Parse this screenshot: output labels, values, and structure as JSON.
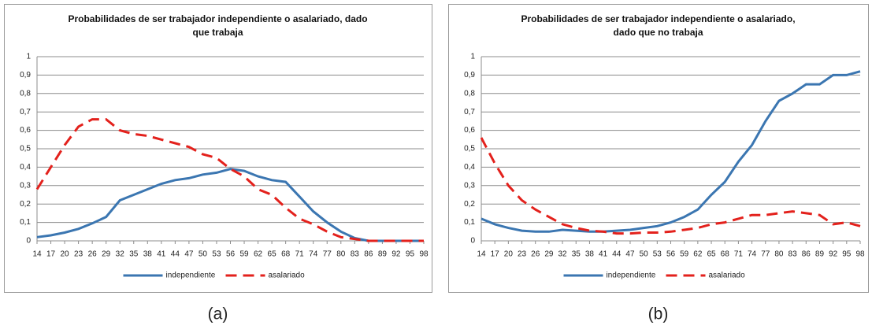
{
  "chart_data": [
    {
      "type": "line",
      "title": "Probabilidades de ser trabajador independiente o asalariado, dado que trabaja",
      "caption": "(a)",
      "x": [
        14,
        17,
        20,
        23,
        26,
        29,
        32,
        35,
        38,
        41,
        44,
        47,
        50,
        53,
        56,
        59,
        62,
        65,
        68,
        71,
        74,
        77,
        80,
        83,
        86,
        89,
        92,
        95,
        98
      ],
      "xlim": [
        14,
        98
      ],
      "xticks": [
        14,
        17,
        20,
        23,
        26,
        29,
        32,
        35,
        38,
        41,
        44,
        47,
        50,
        53,
        56,
        59,
        62,
        65,
        68,
        71,
        74,
        77,
        80,
        83,
        86,
        89,
        92,
        95,
        98
      ],
      "ylim": [
        0,
        1
      ],
      "yticks": [
        0,
        {
          "value": 0.1,
          "label": "0,1"
        },
        {
          "value": 0.2,
          "label": "0,2"
        },
        {
          "value": 0.3,
          "label": "0,3"
        },
        {
          "value": 0.4,
          "label": "0,4"
        },
        {
          "value": 0.5,
          "label": "0,5"
        },
        {
          "value": 0.6,
          "label": "0,6"
        },
        {
          "value": 0.7,
          "label": "0,7"
        },
        {
          "value": 0.8,
          "label": "0,8"
        },
        {
          "value": 0.9,
          "label": "0,9"
        },
        1
      ],
      "grid": true,
      "legend": "bottom",
      "series": [
        {
          "name": "independiente",
          "color": "#3b76b1",
          "style": "solid",
          "values": [
            0.02,
            0.03,
            0.045,
            0.065,
            0.095,
            0.13,
            0.22,
            0.25,
            0.28,
            0.31,
            0.33,
            0.34,
            0.36,
            0.37,
            0.39,
            0.38,
            0.35,
            0.33,
            0.32,
            0.24,
            0.16,
            0.1,
            0.05,
            0.015,
            0,
            0,
            0,
            0,
            0
          ]
        },
        {
          "name": "asalariado",
          "color": "#e3211c",
          "style": "dashed",
          "values": [
            0.28,
            0.4,
            0.52,
            0.62,
            0.66,
            0.66,
            0.6,
            0.58,
            0.57,
            0.55,
            0.53,
            0.51,
            0.47,
            0.45,
            0.39,
            0.35,
            0.28,
            0.25,
            0.18,
            0.12,
            0.09,
            0.05,
            0.02,
            0.01,
            0,
            0,
            0,
            0,
            0
          ]
        }
      ]
    },
    {
      "type": "line",
      "title": "Probabilidades de ser trabajador independiente o asalariado, dado que no trabaja",
      "caption": "(b)",
      "x": [
        14,
        17,
        20,
        23,
        26,
        29,
        32,
        35,
        38,
        41,
        44,
        47,
        50,
        53,
        56,
        59,
        62,
        65,
        68,
        71,
        74,
        77,
        80,
        83,
        86,
        89,
        92,
        95,
        98
      ],
      "xlim": [
        14,
        98
      ],
      "xticks": [
        14,
        17,
        20,
        23,
        26,
        29,
        32,
        35,
        38,
        41,
        44,
        47,
        50,
        53,
        56,
        59,
        62,
        65,
        68,
        71,
        74,
        77,
        80,
        83,
        86,
        89,
        92,
        95,
        98
      ],
      "ylim": [
        0,
        1
      ],
      "yticks": [
        0,
        {
          "value": 0.1,
          "label": "0,1"
        },
        {
          "value": 0.2,
          "label": "0,2"
        },
        {
          "value": 0.3,
          "label": "0,3"
        },
        {
          "value": 0.4,
          "label": "0,4"
        },
        {
          "value": 0.5,
          "label": "0,5"
        },
        {
          "value": 0.6,
          "label": "0,6"
        },
        {
          "value": 0.7,
          "label": "0,7"
        },
        {
          "value": 0.8,
          "label": "0,8"
        },
        {
          "value": 0.9,
          "label": "0,9"
        },
        1
      ],
      "grid": true,
      "legend": "bottom",
      "series": [
        {
          "name": "independiente",
          "color": "#3b76b1",
          "style": "solid",
          "values": [
            0.12,
            0.09,
            0.07,
            0.055,
            0.05,
            0.05,
            0.06,
            0.055,
            0.05,
            0.05,
            0.055,
            0.06,
            0.07,
            0.08,
            0.1,
            0.13,
            0.17,
            0.25,
            0.32,
            0.43,
            0.52,
            0.65,
            0.76,
            0.8,
            0.85,
            0.85,
            0.9,
            0.9,
            0.92
          ]
        },
        {
          "name": "asalariado",
          "color": "#e3211c",
          "style": "dashed",
          "values": [
            0.56,
            0.42,
            0.3,
            0.22,
            0.17,
            0.13,
            0.09,
            0.07,
            0.055,
            0.05,
            0.04,
            0.04,
            0.045,
            0.045,
            0.05,
            0.06,
            0.07,
            0.09,
            0.1,
            0.12,
            0.14,
            0.14,
            0.15,
            0.16,
            0.15,
            0.14,
            0.09,
            0.1,
            0.08
          ]
        }
      ]
    }
  ]
}
